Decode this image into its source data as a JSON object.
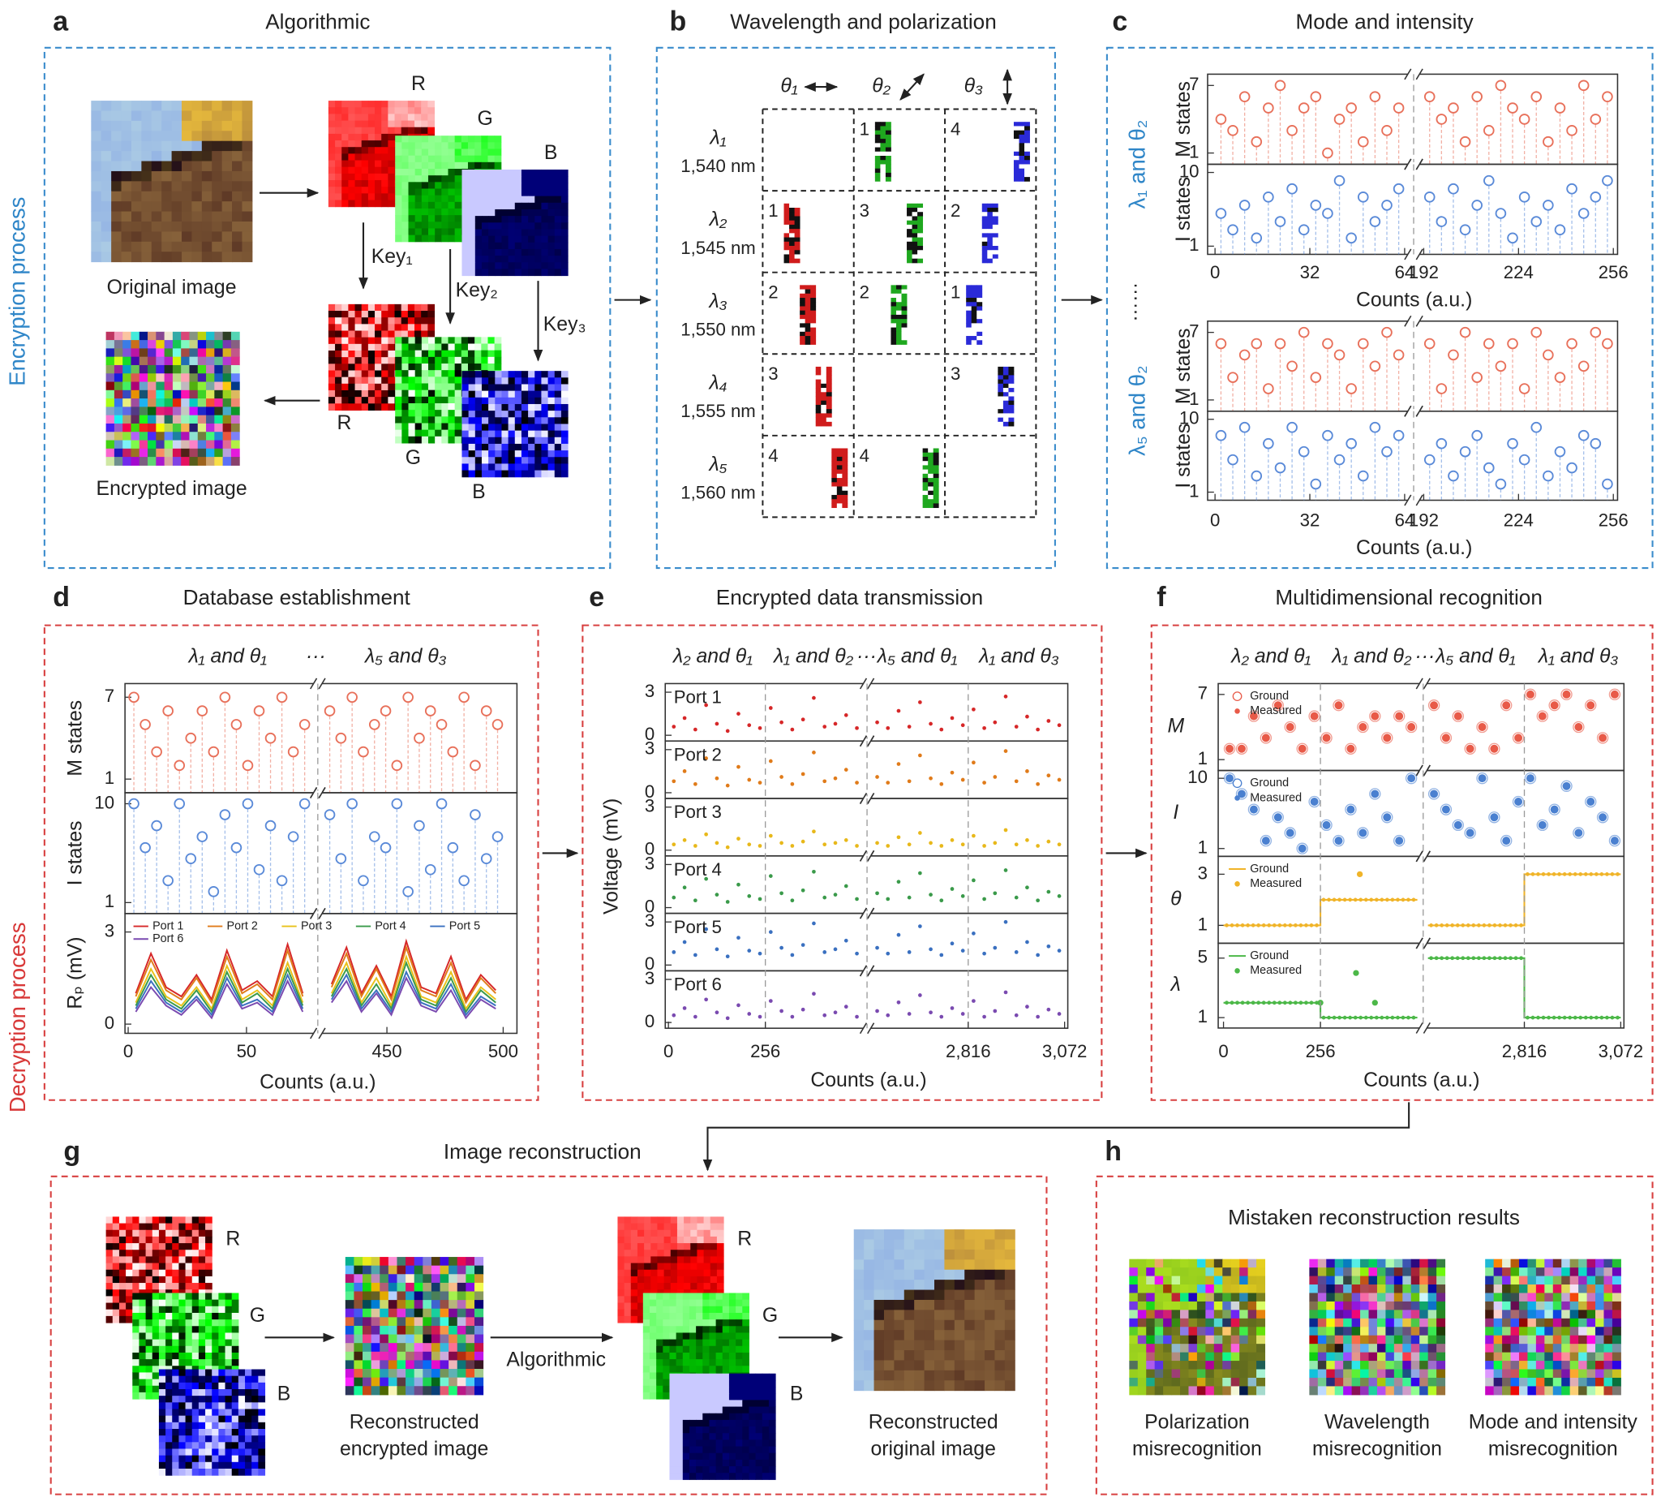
{
  "side_labels": {
    "encryption": "Encryption process",
    "decryption": "Decryption process"
  },
  "panel_a": {
    "letter": "a",
    "title": "Algorithmic",
    "original": "Original image",
    "encrypted": "Encrypted image",
    "channels": [
      "R",
      "G",
      "B"
    ],
    "encrypted_channels": [
      "R",
      "G",
      "B"
    ],
    "keys": [
      "Key₁",
      "Key₂",
      "Key₃"
    ]
  },
  "panel_b": {
    "letter": "b",
    "title": "Wavelength and polarization",
    "thetas": [
      "θ₁",
      "θ₂",
      "θ₃"
    ],
    "column_colors": [
      "#d01c1c",
      "#1fa81f",
      "#2a2ad8"
    ],
    "rows": [
      {
        "lambda": "λ₁",
        "wavelength": "1,540 nm",
        "cells": [
          null,
          "1",
          "4"
        ]
      },
      {
        "lambda": "λ₂",
        "wavelength": "1,545 nm",
        "cells": [
          "1",
          "3",
          "2"
        ]
      },
      {
        "lambda": "λ₃",
        "wavelength": "1,550 nm",
        "cells": [
          "2",
          "2",
          "1"
        ]
      },
      {
        "lambda": "λ₄",
        "wavelength": "1,555 nm",
        "cells": [
          "3",
          null,
          "3"
        ]
      },
      {
        "lambda": "λ₅",
        "wavelength": "1,560 nm",
        "cells": [
          "4",
          "4",
          null
        ]
      }
    ]
  },
  "panel_c": {
    "letter": "c",
    "title": "Mode and intensity",
    "ellipsis": "……",
    "xdomains": [
      [
        0,
        64
      ],
      [
        192,
        256
      ]
    ],
    "groups": [
      {
        "label": "λ₁ and θ₂",
        "xlabel": "Counts (a.u.)",
        "xticks": [
          0,
          32,
          64,
          192,
          224,
          256
        ],
        "m": {
          "ylabel": "M states",
          "ylim": [
            0,
            8
          ],
          "yticks": [
            1,
            7
          ],
          "color": "#e8705a",
          "values": [
            [
              4,
              3,
              6,
              2,
              5,
              7,
              3,
              5,
              6,
              1,
              4,
              5,
              2,
              6,
              3,
              5
            ],
            [
              6,
              4,
              5,
              2,
              6,
              3,
              7,
              5,
              4,
              6,
              2,
              5,
              3,
              7,
              4,
              6
            ]
          ]
        },
        "i": {
          "ylabel": "I states",
          "ylim": [
            0,
            11
          ],
          "yticks": [
            1,
            10
          ],
          "color": "#5a8ad8",
          "values": [
            [
              5,
              3,
              6,
              2,
              7,
              4,
              8,
              3,
              6,
              5,
              9,
              2,
              7,
              4,
              6,
              8
            ],
            [
              7,
              4,
              8,
              3,
              6,
              9,
              5,
              2,
              7,
              4,
              6,
              3,
              8,
              5,
              7,
              9
            ]
          ]
        }
      },
      {
        "label": "λ₅ and θ₂",
        "xlabel": "Counts (a.u.)",
        "xticks": [
          0,
          32,
          64,
          192,
          224,
          256
        ],
        "m": {
          "ylabel": "M states",
          "ylim": [
            0,
            8
          ],
          "yticks": [
            1,
            7
          ],
          "color": "#e8705a",
          "values": [
            [
              6,
              3,
              5,
              6,
              2,
              6,
              4,
              7,
              3,
              6,
              5,
              2,
              6,
              4,
              7,
              5
            ],
            [
              6,
              2,
              5,
              7,
              3,
              6,
              4,
              6,
              2,
              7,
              5,
              3,
              6,
              4,
              7,
              6
            ]
          ]
        },
        "i": {
          "ylabel": "I states",
          "ylim": [
            0,
            11
          ],
          "yticks": [
            1,
            10
          ],
          "color": "#5a8ad8",
          "values": [
            [
              8,
              5,
              9,
              3,
              7,
              4,
              9,
              6,
              2,
              8,
              5,
              7,
              3,
              9,
              6,
              8
            ],
            [
              5,
              7,
              3,
              6,
              8,
              4,
              2,
              7,
              5,
              9,
              3,
              6,
              4,
              8,
              7,
              2
            ]
          ]
        }
      }
    ]
  },
  "panel_d": {
    "letter": "d",
    "title": "Database establishment",
    "header": [
      "λ₁ and θ₁",
      "···",
      "λ₅ and θ₃"
    ],
    "xdomains": [
      [
        0,
        77
      ],
      [
        423,
        500
      ]
    ],
    "xticks": [
      0,
      50,
      450,
      500
    ],
    "xlabel": "Counts (a.u.)",
    "m": {
      "ylabel": "M states",
      "ylim": [
        0,
        8
      ],
      "yticks": [
        1,
        7
      ],
      "color": "#e8705a",
      "values": [
        [
          7,
          5,
          3,
          6,
          2,
          4,
          6,
          3,
          7,
          5,
          2,
          6,
          4,
          7,
          3,
          5
        ],
        [
          6,
          4,
          7,
          3,
          5,
          6,
          2,
          7,
          4,
          6,
          5,
          3,
          7,
          2,
          6,
          5
        ]
      ]
    },
    "i": {
      "ylabel": "I states",
      "ylim": [
        0,
        11
      ],
      "yticks": [
        1,
        10
      ],
      "color": "#5a8ad8",
      "values": [
        [
          10,
          6,
          8,
          3,
          10,
          5,
          7,
          2,
          9,
          6,
          10,
          4,
          8,
          3,
          7,
          10
        ],
        [
          9,
          5,
          10,
          3,
          7,
          6,
          10,
          2,
          8,
          4,
          10,
          6,
          3,
          9,
          5,
          7
        ]
      ]
    },
    "rp": {
      "ylabel": "Rₚ (mV)",
      "ylim": [
        -0.3,
        3.6
      ],
      "yticks": [
        0,
        3
      ],
      "series": [
        {
          "name": "Port 1",
          "color": "#d62728",
          "values": [
            [
              1.0,
              2.3,
              1.2,
              0.9,
              1.6,
              0.8,
              2.4,
              1.1,
              1.4,
              0.9,
              2.6,
              1.0
            ],
            [
              1.3,
              2.5,
              1.0,
              1.9,
              0.9,
              2.7,
              1.2,
              1.0,
              2.2,
              0.8,
              1.6,
              1.1
            ]
          ]
        },
        {
          "name": "Port 2",
          "color": "#e07b1a",
          "values": [
            [
              0.9,
              2.1,
              1.1,
              0.8,
              1.5,
              0.7,
              2.2,
              1.0,
              1.3,
              0.8,
              2.4,
              0.9
            ],
            [
              1.2,
              2.3,
              0.9,
              1.8,
              0.8,
              2.5,
              1.1,
              0.9,
              2.0,
              0.7,
              1.5,
              1.0
            ]
          ]
        },
        {
          "name": "Port 3",
          "color": "#e8c21a",
          "values": [
            [
              0.7,
              1.8,
              0.9,
              0.6,
              1.2,
              0.5,
              1.9,
              0.8,
              1.1,
              0.6,
              2.0,
              0.7
            ],
            [
              1.0,
              2.0,
              0.7,
              1.5,
              0.6,
              2.2,
              0.9,
              0.7,
              1.7,
              0.5,
              1.2,
              0.8
            ]
          ]
        },
        {
          "name": "Port 4",
          "color": "#3a9a4a",
          "values": [
            [
              0.6,
              1.6,
              0.8,
              0.5,
              1.1,
              0.4,
              1.7,
              0.7,
              1.0,
              0.5,
              1.8,
              0.6
            ],
            [
              0.9,
              1.8,
              0.6,
              1.3,
              0.5,
              2.0,
              0.8,
              0.6,
              1.5,
              0.4,
              1.1,
              0.7
            ]
          ]
        },
        {
          "name": "Port 5",
          "color": "#3a70c0",
          "values": [
            [
              0.5,
              1.4,
              0.7,
              0.4,
              0.9,
              0.3,
              1.5,
              0.6,
              0.8,
              0.4,
              1.6,
              0.5
            ],
            [
              0.8,
              1.6,
              0.5,
              1.1,
              0.4,
              1.7,
              0.7,
              0.5,
              1.3,
              0.3,
              0.9,
              0.6
            ]
          ]
        },
        {
          "name": "Port 6",
          "color": "#7a4ab0",
          "values": [
            [
              0.4,
              1.2,
              0.6,
              0.3,
              0.8,
              0.2,
              1.3,
              0.5,
              0.7,
              0.3,
              1.4,
              0.4
            ],
            [
              0.7,
              1.4,
              0.4,
              1.0,
              0.3,
              1.5,
              0.6,
              0.4,
              1.1,
              0.2,
              0.8,
              0.5
            ]
          ]
        }
      ]
    }
  },
  "panel_e": {
    "letter": "e",
    "title": "Encrypted data transmission",
    "header": [
      "λ₂ and θ₁",
      "λ₁ and θ₂",
      "···",
      "λ₅ and θ₁",
      "λ₁ and θ₃"
    ],
    "xdomains": [
      [
        0,
        512
      ],
      [
        2560,
        3072
      ]
    ],
    "dashes": [
      256,
      2816
    ],
    "xticks": [
      0,
      256,
      {
        "value": 2816,
        "label": "2,816"
      },
      {
        "value": 3072,
        "label": "3,072"
      }
    ],
    "xlabel": "Counts (a.u.)",
    "ylabel": "Voltage (mV)",
    "ylim": [
      -0.4,
      3.6
    ],
    "yticks": [
      0,
      3
    ],
    "ports": [
      {
        "name": "Port 1",
        "color": "#d62728",
        "values": [
          [
            0.6,
            1.2,
            0.4,
            2.1,
            0.8,
            0.3,
            1.5,
            0.7,
            0.5,
            1.9,
            0.9,
            0.4,
            1.1,
            2.6,
            0.6,
            0.8,
            1.4,
            0.5
          ],
          [
            0.9,
            0.5,
            1.7,
            0.6,
            2.3,
            0.8,
            0.4,
            1.2,
            0.7,
            1.8,
            0.5,
            0.9,
            2.7,
            0.6,
            1.3,
            0.4,
            1.0,
            0.7
          ]
        ]
      },
      {
        "name": "Port 2",
        "color": "#e07b1a",
        "values": [
          [
            0.8,
            1.5,
            0.6,
            2.4,
            1.0,
            0.5,
            1.8,
            0.9,
            0.7,
            2.2,
            1.1,
            0.6,
            1.3,
            2.8,
            0.8,
            1.0,
            1.6,
            0.7
          ],
          [
            1.1,
            0.7,
            2.0,
            0.8,
            2.6,
            1.0,
            0.6,
            1.4,
            0.9,
            2.1,
            0.7,
            1.1,
            2.9,
            0.8,
            1.5,
            0.6,
            1.2,
            0.9
          ]
        ]
      },
      {
        "name": "Port 3",
        "color": "#e8b81a",
        "values": [
          [
            0.4,
            0.7,
            0.3,
            1.1,
            0.5,
            0.2,
            0.8,
            0.4,
            0.3,
            1.0,
            0.5,
            0.3,
            0.6,
            1.3,
            0.4,
            0.5,
            0.7,
            0.3
          ],
          [
            0.5,
            0.3,
            0.9,
            0.4,
            1.2,
            0.5,
            0.3,
            0.7,
            0.4,
            1.0,
            0.3,
            0.5,
            1.4,
            0.4,
            0.7,
            0.3,
            0.6,
            0.4
          ]
        ]
      },
      {
        "name": "Port 4",
        "color": "#3a9a4a",
        "values": [
          [
            0.7,
            1.4,
            0.5,
            2.0,
            0.9,
            0.4,
            1.6,
            0.8,
            0.6,
            2.2,
            1.0,
            0.5,
            1.2,
            2.5,
            0.7,
            0.9,
            1.5,
            0.6
          ],
          [
            1.0,
            0.6,
            1.8,
            0.7,
            2.4,
            0.9,
            0.5,
            1.3,
            0.8,
            1.9,
            0.6,
            1.0,
            2.6,
            0.7,
            1.4,
            0.5,
            1.1,
            0.8
          ]
        ]
      },
      {
        "name": "Port 5",
        "color": "#3a70c0",
        "values": [
          [
            0.9,
            1.6,
            0.7,
            2.5,
            1.1,
            0.6,
            1.9,
            1.0,
            0.8,
            2.3,
            1.2,
            0.7,
            1.4,
            2.9,
            0.9,
            1.1,
            1.7,
            0.8
          ],
          [
            1.2,
            0.8,
            2.1,
            0.9,
            2.7,
            1.1,
            0.7,
            1.5,
            1.0,
            2.2,
            0.8,
            1.2,
            3.0,
            0.9,
            1.6,
            0.7,
            1.3,
            1.0
          ]
        ]
      },
      {
        "name": "Port 6",
        "color": "#7a4ab0",
        "values": [
          [
            0.5,
            1.0,
            0.4,
            1.6,
            0.7,
            0.3,
            1.2,
            0.6,
            0.4,
            1.5,
            0.8,
            0.4,
            0.9,
            2.0,
            0.5,
            0.7,
            1.1,
            0.4
          ],
          [
            0.8,
            0.5,
            1.4,
            0.6,
            1.9,
            0.7,
            0.4,
            1.0,
            0.6,
            1.5,
            0.4,
            0.8,
            2.1,
            0.5,
            1.1,
            0.4,
            0.9,
            0.6
          ]
        ]
      }
    ]
  },
  "panel_f": {
    "letter": "f",
    "title": "Multidimensional recognition",
    "header": [
      "λ₂ and θ₁",
      "λ₁ and θ₂",
      "···",
      "λ₅ and θ₁",
      "λ₁ and θ₃"
    ],
    "xdomains": [
      [
        0,
        512
      ],
      [
        2560,
        3072
      ]
    ],
    "dashes": [
      256,
      2816
    ],
    "xticks": [
      0,
      256,
      {
        "value": 2816,
        "label": "2,816"
      },
      {
        "value": 3072,
        "label": "3,072"
      }
    ],
    "xlabel": "Counts (a.u.)",
    "m": {
      "ylabel": "M",
      "ylim": [
        0,
        8
      ],
      "yticks": [
        1,
        7
      ],
      "color": "#e85a48",
      "legend": [
        "Ground",
        "Measured"
      ],
      "values": [
        [
          2,
          2,
          5,
          3,
          6,
          4,
          2,
          5,
          3,
          6,
          2,
          4,
          5,
          3,
          5,
          4
        ],
        [
          6,
          3,
          5,
          2,
          4,
          2,
          6,
          3,
          7,
          5,
          6,
          7,
          4,
          6,
          3,
          7
        ]
      ]
    },
    "i": {
      "ylabel": "I",
      "ylim": [
        0,
        11
      ],
      "yticks": [
        1,
        10
      ],
      "color": "#4a80d0",
      "legend": [
        "Ground",
        "Measured"
      ],
      "values": [
        [
          10,
          8,
          6,
          2,
          5,
          3,
          1,
          7,
          4,
          2,
          6,
          3,
          8,
          5,
          2,
          10
        ],
        [
          8,
          6,
          4,
          3,
          10,
          5,
          2,
          7,
          10,
          4,
          6,
          9,
          3,
          7,
          5,
          2
        ]
      ]
    },
    "theta": {
      "ylabel": "θ",
      "ylim": [
        0.3,
        3.7
      ],
      "yticks": [
        1,
        3
      ],
      "color": "#f0b429",
      "legend": [
        "Ground",
        "Measured"
      ],
      "ground": [
        [
          1,
          2
        ],
        [
          1,
          3
        ]
      ],
      "outliers": {
        "x": [
          360
        ],
        "y": [
          3
        ]
      }
    },
    "lambda": {
      "ylabel": "λ",
      "ylim": [
        0.3,
        6
      ],
      "yticks": [
        1,
        5
      ],
      "color": "#4cb848",
      "legend": [
        "Ground",
        "Measured"
      ],
      "ground": [
        [
          2,
          1
        ],
        [
          5,
          1
        ]
      ],
      "outliers": {
        "x": [
          256,
          350,
          400
        ],
        "y": [
          2,
          4,
          2
        ]
      }
    }
  },
  "panel_g": {
    "letter": "g",
    "title": "Image reconstruction",
    "enc_channels": [
      "R",
      "G",
      "B"
    ],
    "dec_channels": [
      "R",
      "G",
      "B"
    ],
    "reconstructed_encrypted": [
      "Reconstructed",
      "encrypted image"
    ],
    "algorithmic": "Algorithmic",
    "reconstructed_original": [
      "Reconstructed",
      "original image"
    ]
  },
  "panel_h": {
    "letter": "h",
    "title": "Mistaken reconstruction results",
    "items": [
      [
        "Polarization",
        "misrecognition"
      ],
      [
        "Wavelength",
        "misrecognition"
      ],
      [
        "Mode and intensity",
        "misrecognition"
      ]
    ]
  }
}
